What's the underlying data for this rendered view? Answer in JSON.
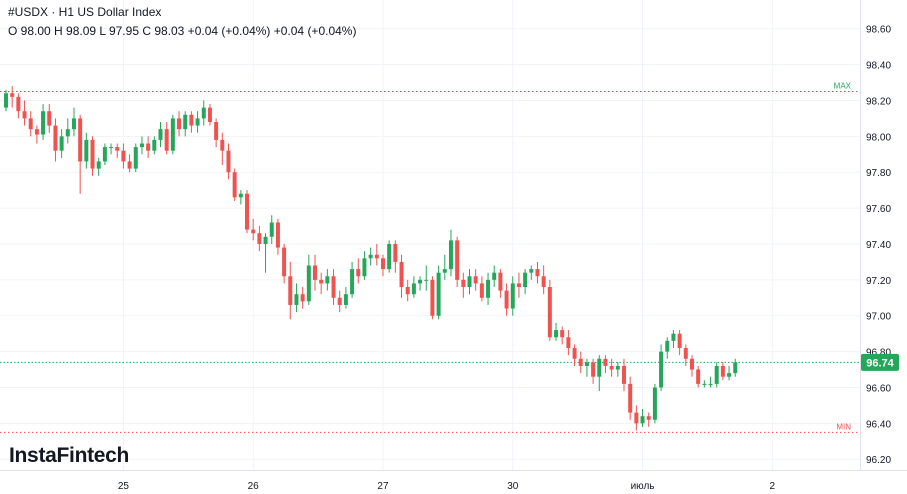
{
  "header": {
    "line1": "#USDX · H1 US Dollar Index",
    "line2": "O 98.00 H 98.09 L 97.95 C 98.03 +0.04 (+0.04%) +0.04 (+0.04%)"
  },
  "logo": "InstaFintech",
  "colors": {
    "up": "#26a65b",
    "down": "#ef5350",
    "grid": "#f0f3fa",
    "max": "#26a65b",
    "min": "#ef5350",
    "price": "#26a65b"
  },
  "chart_data": {
    "type": "candlestick",
    "ylim": [
      96.14,
      98.76
    ],
    "yticks": [
      "98.60",
      "98.40",
      "98.20",
      "98.00",
      "97.80",
      "97.60",
      "97.40",
      "97.20",
      "97.00",
      "96.80",
      "96.60",
      "96.40",
      "96.20"
    ],
    "xticks": [
      {
        "label": "25",
        "bar": 19
      },
      {
        "label": "26",
        "bar": 40
      },
      {
        "label": "27",
        "bar": 61
      },
      {
        "label": "30",
        "bar": 82
      },
      {
        "label": "июль",
        "bar": 103
      },
      {
        "label": "2",
        "bar": 124
      }
    ],
    "max_line": {
      "label": "MAX",
      "value": 98.25
    },
    "min_line": {
      "label": "MIN",
      "value": 96.35
    },
    "last_price": {
      "label": "96.74",
      "value": 96.74
    },
    "candles": [
      [
        98.16,
        98.24,
        98.26,
        98.14
      ],
      [
        98.24,
        98.22,
        98.28,
        98.16
      ],
      [
        98.22,
        98.14,
        98.24,
        98.1
      ],
      [
        98.14,
        98.1,
        98.2,
        98.06
      ],
      [
        98.1,
        98.04,
        98.14,
        98.0
      ],
      [
        98.04,
        98.01,
        98.06,
        97.96
      ],
      [
        98.01,
        98.14,
        98.18,
        97.98
      ],
      [
        98.14,
        98.06,
        98.18,
        98.02
      ],
      [
        98.06,
        97.92,
        98.1,
        97.86
      ],
      [
        97.92,
        98.0,
        98.04,
        97.88
      ],
      [
        98.0,
        98.04,
        98.1,
        97.96
      ],
      [
        98.04,
        98.1,
        98.16,
        98.0
      ],
      [
        98.1,
        97.86,
        98.12,
        97.68
      ],
      [
        97.86,
        97.98,
        98.02,
        97.82
      ],
      [
        97.98,
        97.82,
        98.0,
        97.78
      ],
      [
        97.82,
        97.86,
        97.88,
        97.78
      ],
      [
        97.86,
        97.94,
        97.96,
        97.84
      ],
      [
        97.94,
        97.94,
        97.96,
        97.9
      ],
      [
        97.94,
        97.92,
        97.96,
        97.88
      ],
      [
        97.92,
        97.86,
        97.96,
        97.82
      ],
      [
        97.86,
        97.82,
        97.9,
        97.8
      ],
      [
        97.82,
        97.94,
        97.96,
        97.8
      ],
      [
        97.94,
        97.96,
        98.0,
        97.9
      ],
      [
        97.96,
        97.92,
        98.0,
        97.88
      ],
      [
        97.92,
        97.98,
        98.0,
        97.9
      ],
      [
        97.98,
        98.04,
        98.08,
        97.94
      ],
      [
        98.04,
        97.92,
        98.08,
        97.9
      ],
      [
        97.92,
        98.1,
        98.12,
        97.9
      ],
      [
        98.1,
        98.04,
        98.14,
        98.0
      ],
      [
        98.04,
        98.12,
        98.14,
        98.0
      ],
      [
        98.12,
        98.06,
        98.14,
        98.02
      ],
      [
        98.06,
        98.1,
        98.14,
        98.02
      ],
      [
        98.1,
        98.16,
        98.2,
        98.06
      ],
      [
        98.16,
        98.08,
        98.18,
        98.06
      ],
      [
        98.08,
        97.98,
        98.1,
        97.94
      ],
      [
        97.98,
        97.92,
        98.02,
        97.84
      ],
      [
        97.92,
        97.8,
        97.96,
        97.76
      ],
      [
        97.8,
        97.66,
        97.82,
        97.64
      ],
      [
        97.66,
        97.68,
        97.7,
        97.62
      ],
      [
        97.68,
        97.48,
        97.7,
        97.46
      ],
      [
        97.48,
        97.46,
        97.54,
        97.42
      ],
      [
        97.46,
        97.4,
        97.5,
        97.36
      ],
      [
        97.4,
        97.44,
        97.46,
        97.24
      ],
      [
        97.44,
        97.52,
        97.56,
        97.4
      ],
      [
        97.52,
        97.38,
        97.54,
        97.34
      ],
      [
        97.38,
        97.22,
        97.4,
        97.18
      ],
      [
        97.22,
        97.06,
        97.3,
        96.98
      ],
      [
        97.06,
        97.12,
        97.18,
        97.02
      ],
      [
        97.12,
        97.08,
        97.16,
        97.04
      ],
      [
        97.08,
        97.28,
        97.34,
        97.06
      ],
      [
        97.28,
        97.2,
        97.34,
        97.14
      ],
      [
        97.2,
        97.18,
        97.24,
        97.12
      ],
      [
        97.18,
        97.22,
        97.26,
        97.14
      ],
      [
        97.22,
        97.1,
        97.26,
        97.06
      ],
      [
        97.1,
        97.06,
        97.14,
        97.02
      ],
      [
        97.06,
        97.12,
        97.16,
        97.04
      ],
      [
        97.12,
        97.26,
        97.3,
        97.1
      ],
      [
        97.26,
        97.22,
        97.32,
        97.18
      ],
      [
        97.22,
        97.32,
        97.36,
        97.2
      ],
      [
        97.32,
        97.34,
        97.38,
        97.28
      ],
      [
        97.34,
        97.32,
        97.4,
        97.28
      ],
      [
        97.32,
        97.26,
        97.34,
        97.22
      ],
      [
        97.26,
        97.4,
        97.42,
        97.24
      ],
      [
        97.4,
        97.3,
        97.42,
        97.24
      ],
      [
        97.3,
        97.16,
        97.34,
        97.1
      ],
      [
        97.16,
        97.12,
        97.2,
        97.08
      ],
      [
        97.12,
        97.18,
        97.22,
        97.1
      ],
      [
        97.18,
        97.2,
        97.22,
        97.14
      ],
      [
        97.2,
        97.2,
        97.28,
        97.14
      ],
      [
        97.2,
        97.0,
        97.22,
        96.98
      ],
      [
        97.0,
        97.24,
        97.28,
        96.98
      ],
      [
        97.24,
        97.26,
        97.34,
        97.2
      ],
      [
        97.26,
        97.42,
        97.48,
        97.22
      ],
      [
        97.42,
        97.2,
        97.44,
        97.16
      ],
      [
        97.2,
        97.16,
        97.24,
        97.1
      ],
      [
        97.16,
        97.22,
        97.26,
        97.12
      ],
      [
        97.22,
        97.18,
        97.26,
        97.14
      ],
      [
        97.18,
        97.1,
        97.22,
        97.08
      ],
      [
        97.1,
        97.2,
        97.24,
        97.06
      ],
      [
        97.2,
        97.24,
        97.28,
        97.16
      ],
      [
        97.24,
        97.14,
        97.26,
        97.1
      ],
      [
        97.14,
        97.04,
        97.18,
        97.0
      ],
      [
        97.04,
        97.18,
        97.22,
        97.0
      ],
      [
        97.18,
        97.16,
        97.24,
        97.1
      ],
      [
        97.16,
        97.24,
        97.26,
        97.12
      ],
      [
        97.24,
        97.26,
        97.28,
        97.2
      ],
      [
        97.26,
        97.22,
        97.3,
        97.18
      ],
      [
        97.22,
        97.16,
        97.28,
        97.12
      ],
      [
        97.16,
        96.88,
        97.2,
        96.86
      ],
      [
        96.88,
        96.92,
        96.96,
        96.86
      ],
      [
        96.92,
        96.88,
        96.94,
        96.84
      ],
      [
        96.88,
        96.82,
        96.92,
        96.78
      ],
      [
        96.82,
        96.76,
        96.84,
        96.72
      ],
      [
        96.76,
        96.72,
        96.8,
        96.68
      ],
      [
        96.72,
        96.74,
        96.76,
        96.66
      ],
      [
        96.74,
        96.66,
        96.76,
        96.62
      ],
      [
        96.66,
        96.76,
        96.78,
        96.58
      ],
      [
        96.76,
        96.72,
        96.78,
        96.68
      ],
      [
        96.72,
        96.7,
        96.76,
        96.66
      ],
      [
        96.7,
        96.72,
        96.74,
        96.66
      ],
      [
        96.72,
        96.62,
        96.76,
        96.58
      ],
      [
        96.62,
        96.46,
        96.66,
        96.42
      ],
      [
        96.46,
        96.4,
        96.5,
        96.36
      ],
      [
        96.4,
        96.44,
        96.48,
        96.38
      ],
      [
        96.44,
        96.42,
        96.46,
        96.38
      ],
      [
        96.42,
        96.6,
        96.62,
        96.4
      ],
      [
        96.6,
        96.8,
        96.84,
        96.58
      ],
      [
        96.8,
        96.86,
        96.88,
        96.76
      ],
      [
        96.86,
        96.9,
        96.92,
        96.82
      ],
      [
        96.9,
        96.82,
        96.92,
        96.78
      ],
      [
        96.82,
        96.76,
        96.84,
        96.72
      ],
      [
        96.76,
        96.7,
        96.78,
        96.66
      ],
      [
        96.7,
        96.62,
        96.72,
        96.6
      ],
      [
        96.62,
        96.62,
        96.64,
        96.6
      ],
      [
        96.62,
        96.62,
        96.66,
        96.6
      ],
      [
        96.62,
        96.72,
        96.74,
        96.6
      ],
      [
        96.72,
        96.66,
        96.74,
        96.64
      ],
      [
        96.66,
        96.68,
        96.72,
        96.64
      ],
      [
        96.68,
        96.74,
        96.76,
        96.66
      ]
    ]
  }
}
